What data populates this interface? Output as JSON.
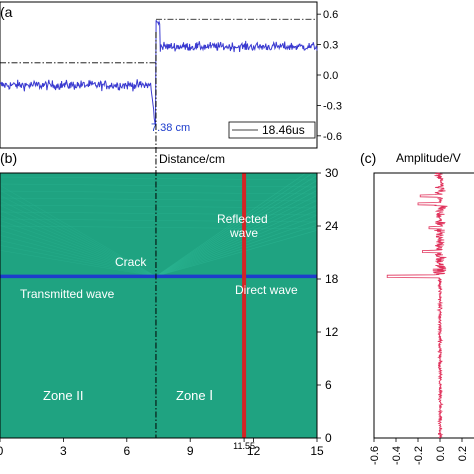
{
  "colors": {
    "waveform_a": "#3a3ad0",
    "field_background": "#1fa381",
    "field_stripe": "#2bb592",
    "direct_wave_line": "#1d3ccc",
    "red_line": "#d32525",
    "amplitude_trace": "#e0305a",
    "axis": "#000000"
  },
  "chart_data": [
    {
      "type": "line",
      "panel_label": "(a",
      "y_ticks": [
        "0.6",
        "0.3",
        "0.0",
        "-0.3",
        "-0.6"
      ],
      "ylim": [
        -0.72,
        0.72
      ],
      "crack_marker_label": "7.38 cm",
      "legend": "18.46us",
      "levels": {
        "before": 0.12,
        "after": 0.55
      },
      "waveform": {
        "x_range": [
          0,
          15
        ],
        "step_x": 7.38,
        "pre_mean": -0.1,
        "post_mean": 0.28,
        "min_spike": -0.55,
        "max_spike": 0.52
      }
    },
    {
      "type": "heatmap",
      "panel_label": "(b)",
      "top_label": "Distance/cm",
      "x_ticks": [
        "0",
        "3",
        "6",
        "9",
        "11.55",
        "12",
        "15"
      ],
      "xlim": [
        0,
        15
      ],
      "y_ticks": [
        "0",
        "6",
        "12",
        "18",
        "24",
        "30"
      ],
      "ylim": [
        0,
        30
      ],
      "crack_x": 7.38,
      "red_line_x": 11.55,
      "direct_wave_y": 18.3,
      "annotations": {
        "reflected": "Reflected\nwave",
        "crack": "Crack",
        "transmitted": "Transmitted wave",
        "direct": "Direct wave",
        "zone2": "Zone II",
        "zone1": "Zone Ⅰ"
      }
    },
    {
      "type": "line",
      "panel_label": "(c)",
      "title": "Amplitude/V",
      "x_ticks": [
        "-0.6",
        "-0.4",
        "-0.2",
        "0.0",
        "0.2",
        "0.4"
      ],
      "xlim": [
        -0.6,
        0.4
      ],
      "ylim": [
        0,
        30
      ],
      "trace": {
        "noise_band": 0.03,
        "upper_noise_band": 0.09,
        "peak_y": 18.3,
        "peak_amplitude": -0.48,
        "secondary_peaks": [
          {
            "y": 26.5,
            "amplitude": -0.2
          },
          {
            "y": 27.4,
            "amplitude": -0.18
          },
          {
            "y": 23.8,
            "amplitude": -0.1
          },
          {
            "y": 21.1,
            "amplitude": -0.16
          }
        ]
      }
    }
  ]
}
